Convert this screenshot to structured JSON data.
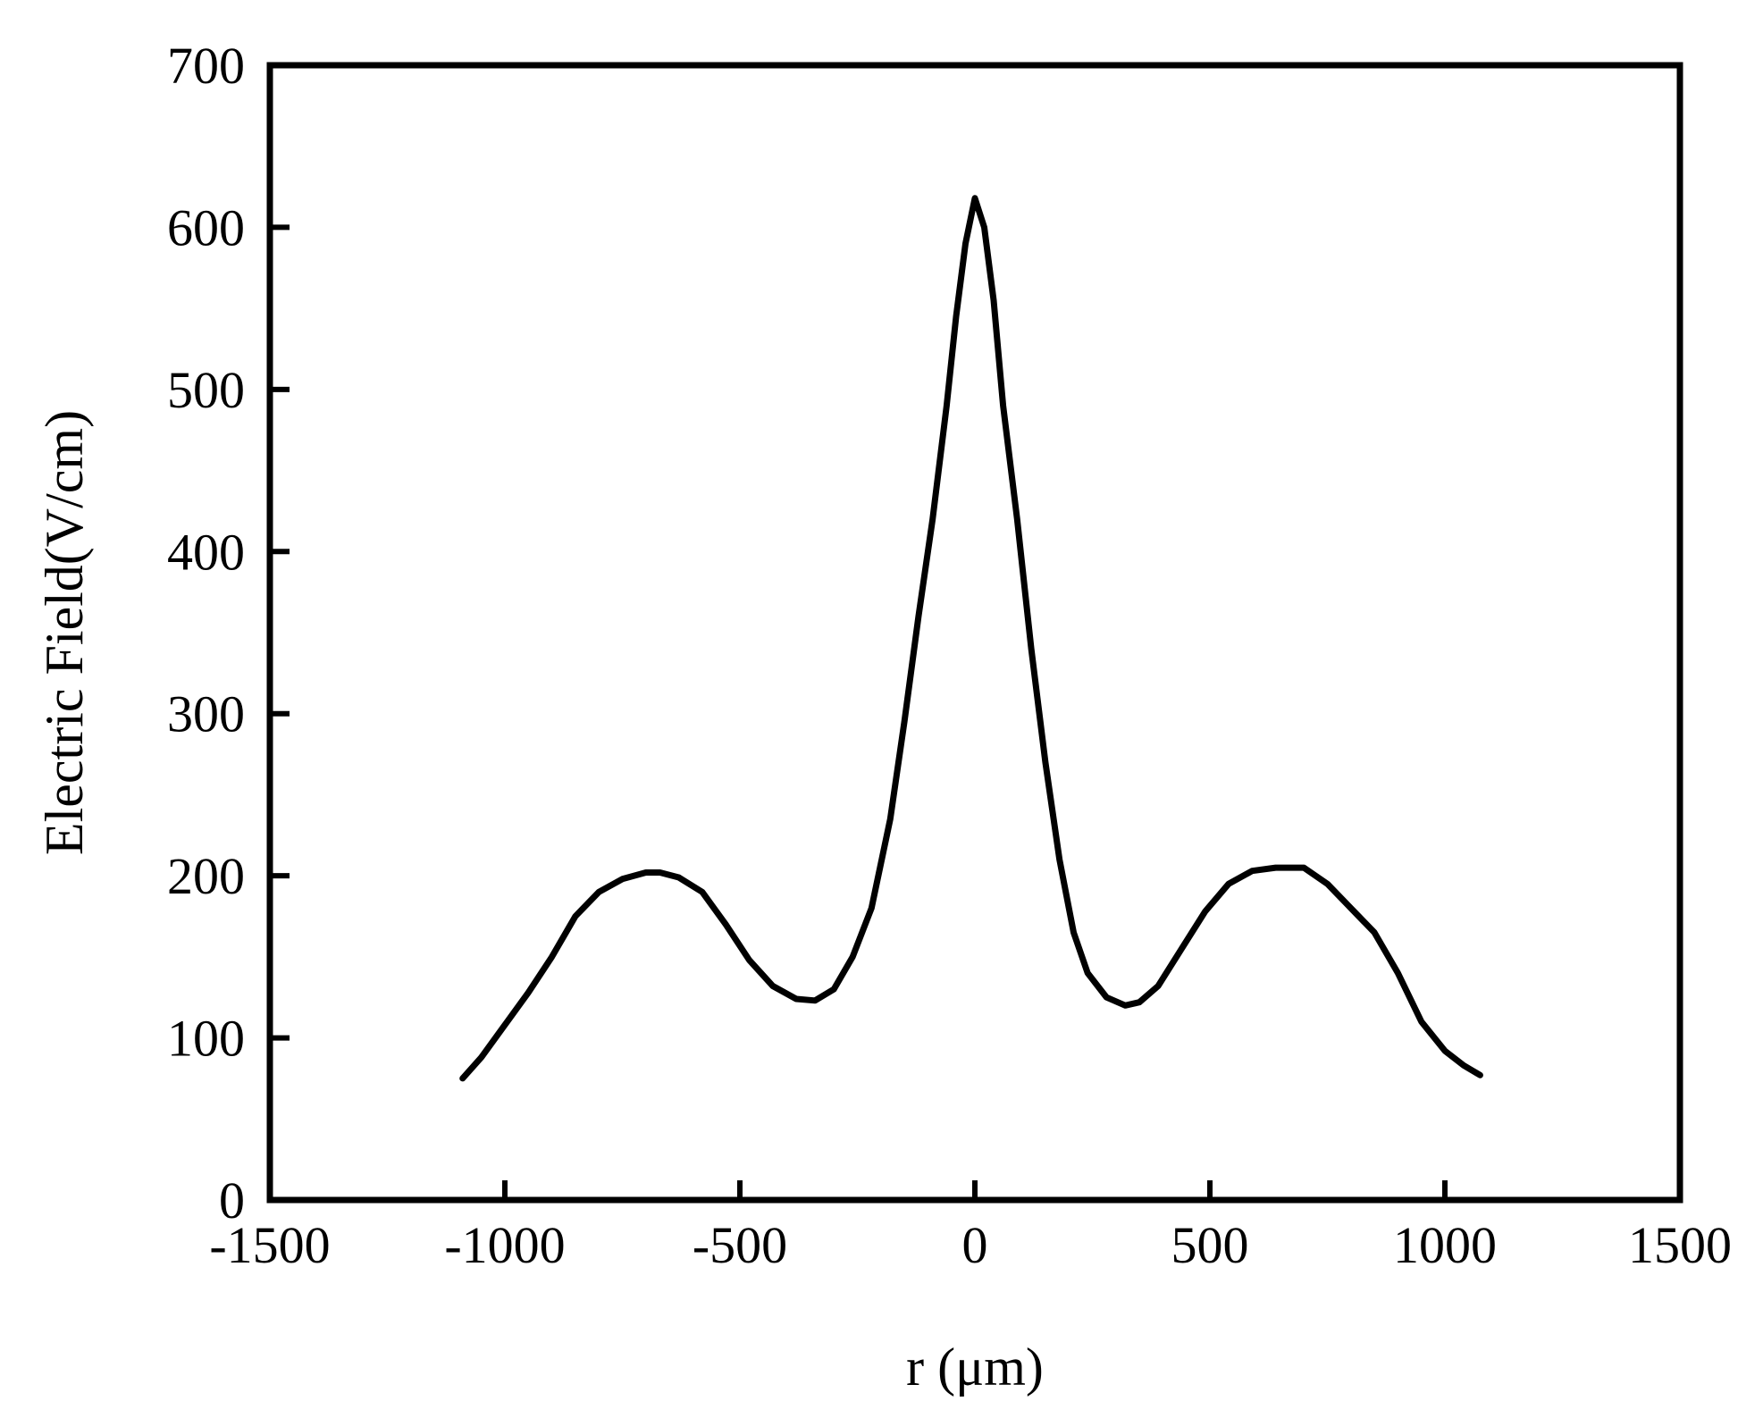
{
  "chart_data": {
    "type": "line",
    "title": "",
    "xlabel": "r (μm)",
    "ylabel": "Electric Field(V/cm)",
    "xlim": [
      -1500,
      1500
    ],
    "ylim": [
      0,
      700
    ],
    "xticks": [
      -1500,
      -1000,
      -500,
      0,
      500,
      1000,
      1500
    ],
    "yticks": [
      0,
      100,
      200,
      300,
      400,
      500,
      600,
      700
    ],
    "grid": false,
    "legend": "none",
    "colors": {
      "line": "#000000",
      "axis": "#000000",
      "background": "#ffffff"
    },
    "series": [
      {
        "x": [
          -1090,
          -1050,
          -1000,
          -950,
          -900,
          -850,
          -800,
          -750,
          -700,
          -670,
          -630,
          -580,
          -530,
          -480,
          -430,
          -380,
          -340,
          -300,
          -260,
          -220,
          -180,
          -150,
          -120,
          -90,
          -60,
          -40,
          -20,
          0,
          20,
          40,
          60,
          90,
          120,
          150,
          180,
          210,
          240,
          280,
          320,
          350,
          390,
          440,
          490,
          540,
          590,
          640,
          700,
          750,
          800,
          850,
          900,
          950,
          1000,
          1040,
          1075
        ],
        "y": [
          75,
          88,
          108,
          128,
          150,
          175,
          190,
          198,
          202,
          202,
          199,
          190,
          170,
          148,
          132,
          124,
          123,
          130,
          150,
          180,
          235,
          295,
          360,
          420,
          490,
          545,
          590,
          618,
          600,
          555,
          490,
          420,
          340,
          270,
          210,
          165,
          140,
          125,
          120,
          122,
          132,
          155,
          178,
          195,
          203,
          205,
          205,
          195,
          180,
          165,
          140,
          110,
          92,
          83,
          77
        ]
      }
    ]
  }
}
